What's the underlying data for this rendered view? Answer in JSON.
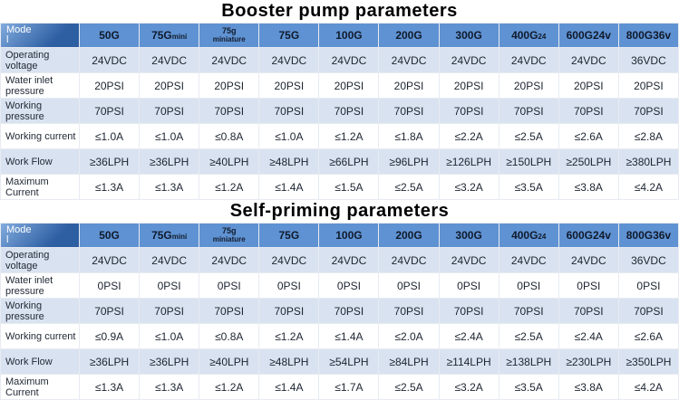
{
  "theme": {
    "header_blue": "#5f92d2",
    "model_header_dark": "#2e5fa3",
    "model_header_light": "#82abde",
    "row_stripe_light": "#d9e2f0",
    "row_stripe_white": "#ffffff"
  },
  "tables": [
    {
      "title": "Booster pump parameters",
      "model_label": "Model",
      "columns": [
        {
          "main": "50G",
          "sub": ""
        },
        {
          "main": "75G",
          "sub": "mini"
        },
        {
          "main": "75g",
          "sub": "miniature"
        },
        {
          "main": "75G",
          "sub": ""
        },
        {
          "main": "100G",
          "sub": ""
        },
        {
          "main": "200G",
          "sub": ""
        },
        {
          "main": "300G",
          "sub": ""
        },
        {
          "main": "400G",
          "sub": "24"
        },
        {
          "main": "600G24v",
          "sub": ""
        },
        {
          "main": "800G36v",
          "sub": ""
        }
      ],
      "rows": [
        {
          "label": "Operating voltage",
          "values": [
            "24VDC",
            "24VDC",
            "24VDC",
            "24VDC",
            "24VDC",
            "24VDC",
            "24VDC",
            "24VDC",
            "24VDC",
            "36VDC"
          ]
        },
        {
          "label": "Water inlet pressure",
          "values": [
            "20PSI",
            "20PSI",
            "20PSI",
            "20PSI",
            "20PSI",
            "20PSI",
            "20PSI",
            "20PSI",
            "20PSI",
            "20PSI"
          ]
        },
        {
          "label": "Working pressure",
          "values": [
            "70PSI",
            "70PSI",
            "70PSI",
            "70PSI",
            "70PSI",
            "70PSI",
            "70PSI",
            "70PSI",
            "70PSI",
            "70PSI"
          ]
        },
        {
          "label": "Working current",
          "values": [
            "≤1.0A",
            "≤1.0A",
            "≤0.8A",
            "≤1.0A",
            "≤1.2A",
            "≤1.8A",
            "≤2.2A",
            "≤2.5A",
            "≤2.6A",
            "≤2.8A"
          ]
        },
        {
          "label": "Work Flow",
          "values": [
            "≥36LPH",
            "≥36LPH",
            "≥40LPH",
            "≥48LPH",
            "≥66LPH",
            "≥96LPH",
            "≥126LPH",
            "≥150LPH",
            "≥250LPH",
            "≥380LPH"
          ]
        },
        {
          "label": "Maximum Current",
          "values": [
            "≤1.3A",
            "≤1.3A",
            "≤1.2A",
            "≤1.4A",
            "≤1.5A",
            "≤2.5A",
            "≤3.2A",
            "≤3.5A",
            "≤3.8A",
            "≤4.2A"
          ]
        }
      ]
    },
    {
      "title": "Self-priming parameters",
      "model_label": "Model",
      "columns": [
        {
          "main": "50G",
          "sub": ""
        },
        {
          "main": "75G",
          "sub": "mini"
        },
        {
          "main": "75g",
          "sub": "miniature"
        },
        {
          "main": "75G",
          "sub": ""
        },
        {
          "main": "100G",
          "sub": ""
        },
        {
          "main": "200G",
          "sub": ""
        },
        {
          "main": "300G",
          "sub": ""
        },
        {
          "main": "400G",
          "sub": "24"
        },
        {
          "main": "600G24v",
          "sub": ""
        },
        {
          "main": "800G36v",
          "sub": ""
        }
      ],
      "rows": [
        {
          "label": "Operating voltage",
          "values": [
            "24VDC",
            "24VDC",
            "24VDC",
            "24VDC",
            "24VDC",
            "24VDC",
            "24VDC",
            "24VDC",
            "24VDC",
            "36VDC"
          ]
        },
        {
          "label": "Water inlet pressure",
          "values": [
            "0PSI",
            "0PSI",
            "0PSI",
            "0PSI",
            "0PSI",
            "0PSI",
            "0PSI",
            "0PSI",
            "0PSI",
            "0PSI"
          ]
        },
        {
          "label": "Working pressure",
          "values": [
            "70PSI",
            "70PSI",
            "70PSI",
            "70PSI",
            "70PSI",
            "70PSI",
            "70PSI",
            "70PSI",
            "70PSI",
            "70PSI"
          ]
        },
        {
          "label": "Working current",
          "values": [
            "≤0.9A",
            "≤1.0A",
            "≤0.8A",
            "≤1.2A",
            "≤1.4A",
            "≤2.0A",
            "≤2.4A",
            "≤2.5A",
            "≤2.4A",
            "≤2.6A"
          ]
        },
        {
          "label": "Work Flow",
          "values": [
            "≥36LPH",
            "≥36LPH",
            "≥40LPH",
            "≥48LPH",
            "≥54LPH",
            "≥84LPH",
            "≥114LPH",
            "≥138LPH",
            "≥230LPH",
            "≥350LPH"
          ]
        },
        {
          "label": "Maximum Current",
          "values": [
            "≤1.3A",
            "≤1.3A",
            "≤1.2A",
            "≤1.4A",
            "≤1.7A",
            "≤2.5A",
            "≤3.2A",
            "≤3.5A",
            "≤3.8A",
            "≤4.2A"
          ]
        }
      ]
    }
  ]
}
